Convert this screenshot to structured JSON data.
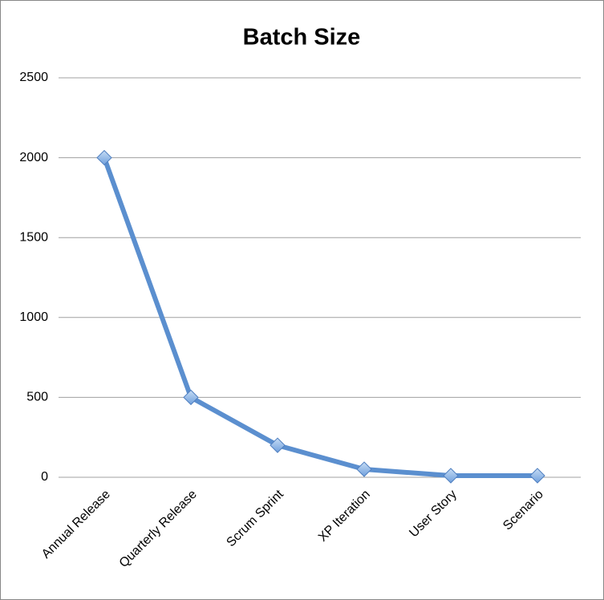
{
  "chart_data": {
    "type": "line",
    "title": "Batch Size",
    "categories": [
      "Annual Release",
      "Quarterly Release",
      "Scrum Sprint",
      "XP Iteration",
      "User Story",
      "Scenario"
    ],
    "series": [
      {
        "name": "Batch Size",
        "color": "#5b8fcf",
        "values": [
          2000,
          500,
          200,
          50,
          10,
          10
        ]
      }
    ],
    "ylim": [
      0,
      2500
    ],
    "yticks": [
      0,
      500,
      1000,
      1500,
      2000,
      2500
    ],
    "grid": true
  }
}
